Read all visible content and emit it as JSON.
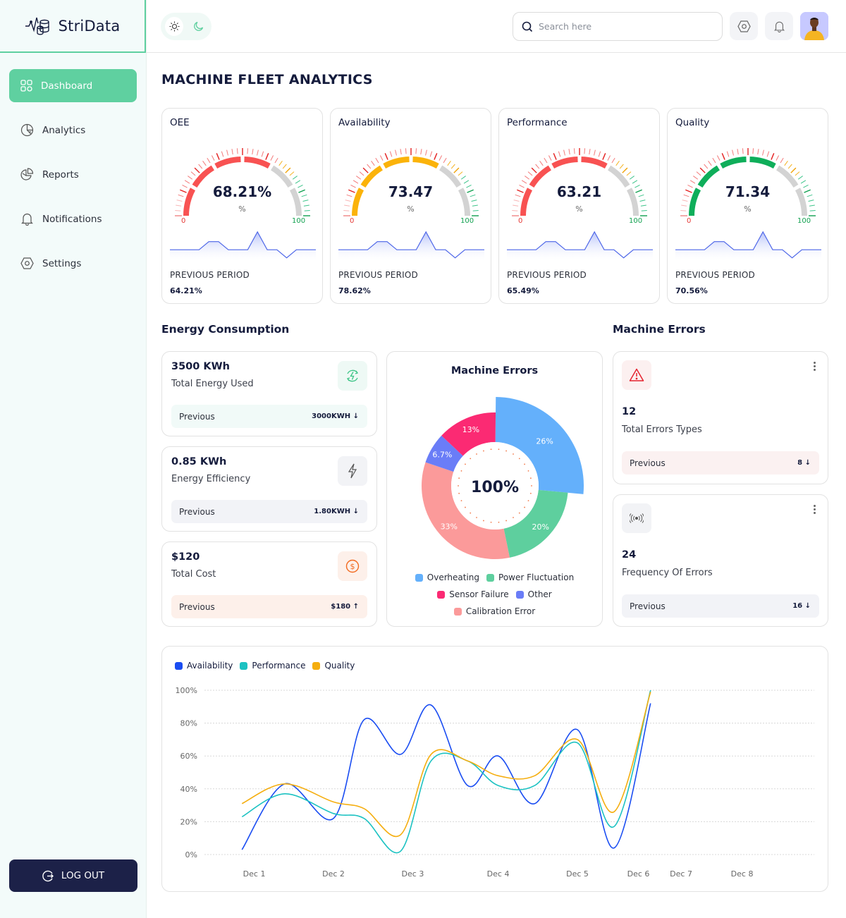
{
  "app": {
    "name": "StriData"
  },
  "sidebar": {
    "items": [
      {
        "label": "Dashboard",
        "icon": "grid-icon",
        "active": true
      },
      {
        "label": "Analytics",
        "icon": "pie-chart-icon",
        "active": false
      },
      {
        "label": "Reports",
        "icon": "report-chart-icon",
        "active": false
      },
      {
        "label": "Notifications",
        "icon": "bell-icon",
        "active": false
      },
      {
        "label": "Settings",
        "icon": "hexagon-settings-icon",
        "active": false
      }
    ],
    "logout_label": "LOG OUT"
  },
  "topbar": {
    "search_placeholder": "Search here",
    "theme": "light"
  },
  "page": {
    "title": "MACHINE FLEET ANALYTICS"
  },
  "gauges": [
    {
      "title": "OEE",
      "value_text": "68.21%",
      "value": 68.21,
      "unit": "%",
      "min": "0",
      "max": "100",
      "color": "#f85252",
      "prev_label": "PREVIOUS PERIOD",
      "prev_value": "64.21%"
    },
    {
      "title": "Availability",
      "value_text": "73.47",
      "value": 73.47,
      "unit": "%",
      "min": "0",
      "max": "100",
      "color": "#fbb30a",
      "prev_label": "PREVIOUS PERIOD",
      "prev_value": "78.62%"
    },
    {
      "title": "Performance",
      "value_text": "63.21",
      "value": 63.21,
      "unit": "%",
      "min": "0",
      "max": "100",
      "color": "#f85252",
      "prev_label": "PREVIOUS PERIOD",
      "prev_value": "65.49%"
    },
    {
      "title": "Quality",
      "value_text": "71.34",
      "value": 71.34,
      "unit": "%",
      "min": "0",
      "max": "100",
      "color": "#0fae5a",
      "prev_label": "PREVIOUS PERIOD",
      "prev_value": "70.56%"
    }
  ],
  "sparkline": [
    0.3,
    0.3,
    0.3,
    0.3,
    0.55,
    0.55,
    0.3,
    0.3,
    0.3,
    0.85,
    0.3,
    0.3,
    0.05,
    0.3,
    0.3,
    0.3
  ],
  "energy": {
    "title": "Energy Consumption",
    "cards": [
      {
        "value": "3500 KWh",
        "label": "Total Energy Used",
        "icon": "energy-recycle-icon",
        "prev_label": "Previous",
        "prev_value": "3000KWH",
        "trend": "down",
        "tone": "green"
      },
      {
        "value": "0.85 KWh",
        "label": "Energy Efficiency",
        "icon": "lightning-icon",
        "prev_label": "Previous",
        "prev_value": "1.80KWH",
        "trend": "down",
        "tone": "gray"
      },
      {
        "value": "$120",
        "label": "Total Cost",
        "icon": "dollar-coin-icon",
        "prev_label": "Previous",
        "prev_value": "$180",
        "trend": "up",
        "tone": "orange"
      }
    ]
  },
  "errors_section": {
    "title": "Machine Errors",
    "cards": [
      {
        "value": "12",
        "label": "Total Errors Types",
        "icon": "warning-triangle-icon",
        "prev_label": "Previous",
        "prev_value": "8",
        "trend": "down",
        "tone": "red"
      },
      {
        "value": "24",
        "label": "Frequency Of Errors",
        "icon": "signal-broadcast-icon",
        "prev_label": "Previous",
        "prev_value": "16",
        "trend": "down",
        "tone": "gray"
      }
    ]
  },
  "chart_data": [
    {
      "type": "pie",
      "title": "Machine Errors",
      "center_label": "100%",
      "categories": [
        "Overheating",
        "Power Fluctuation",
        "Calibration Error",
        "Other",
        "Sensor Failure"
      ],
      "values": [
        26,
        20,
        33,
        6.7,
        13
      ],
      "labels": [
        "26%",
        "20%",
        "33%",
        "6.7%",
        "13%"
      ],
      "colors": [
        "#64b0fb",
        "#5ecf9e",
        "#fb9a9a",
        "#6a7df7",
        "#fb2a73"
      ],
      "legend": [
        [
          "Overheating",
          "Power Fluctuation"
        ],
        [
          "Sensor Failure",
          "Other"
        ],
        [
          "Calibration Error"
        ]
      ],
      "legend_placement": "bottom"
    },
    {
      "type": "line",
      "title": "",
      "xlabel": "",
      "ylabel": "",
      "x_ticks": [
        "Dec 1",
        "Dec 2",
        "Dec 3",
        "Dec 4",
        "Dec 5",
        "Dec 6",
        "Dec 7",
        "Dec 8"
      ],
      "y_ticks": [
        "0%",
        "20%",
        "40%",
        "60%",
        "80%",
        "100%"
      ],
      "ylim": [
        0,
        100
      ],
      "grid": true,
      "legend_placement": "top-left",
      "x": [
        0.5,
        1.2,
        2.0,
        2.5,
        3.1,
        3.6,
        4.2,
        4.7,
        5.3,
        6.0,
        6.6,
        7.2,
        7.8,
        8.7,
        9.4
      ],
      "series": [
        {
          "name": "Availability",
          "color": "#1a4df2",
          "values": [
            3,
            43,
            22,
            82,
            61,
            91,
            42,
            60,
            31,
            76,
            4,
            92,
            92,
            92,
            92
          ]
        },
        {
          "name": "Performance",
          "color": "#1cc2c2",
          "values": [
            23,
            37,
            25,
            22,
            2,
            57,
            57,
            42,
            42,
            68,
            17,
            100,
            100,
            100,
            100
          ]
        },
        {
          "name": "Quality",
          "color": "#f5ae0f",
          "values": [
            31,
            43,
            32,
            28,
            12,
            61,
            57,
            48,
            48,
            70,
            26,
            99,
            99,
            99,
            99
          ]
        }
      ]
    }
  ]
}
